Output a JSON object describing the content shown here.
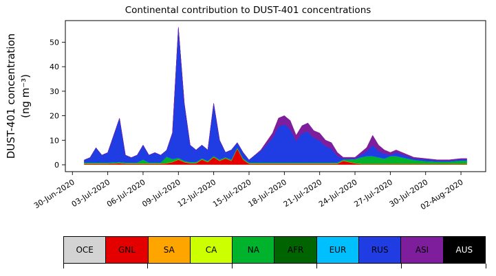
{
  "title": "Continental contribution to DUST-401 concentrations",
  "y_axis": {
    "label_line1": "DUST-401 concentration",
    "label_line2": "(ng m⁻³)"
  },
  "chart_data": {
    "type": "area",
    "stacked": true,
    "title": "Continental contribution to DUST-401 concentrations",
    "ylabel": "DUST-401 concentration (ng m⁻³)",
    "xlabel": "",
    "grid": false,
    "legend_position": "bottom",
    "x_unit": "days since 30-Jun-2020",
    "xlim": [
      -0.6,
      35.1
    ],
    "ylim": [
      -2.8,
      58.8
    ],
    "yticks": [
      0,
      10,
      20,
      30,
      40,
      50
    ],
    "xticks": {
      "positions": [
        0,
        3,
        6,
        9,
        12,
        15,
        18,
        21,
        24,
        27,
        30,
        33
      ],
      "labels": [
        "30-Jun-2020",
        "03-Jul-2020",
        "06-Jul-2020",
        "09-Jul-2020",
        "12-Jul-2020",
        "15-Jul-2020",
        "18-Jul-2020",
        "21-Jul-2020",
        "24-Jul-2020",
        "27-Jul-2020",
        "30-Jul-2020",
        "02-Aug-2020"
      ]
    },
    "x": [
      1,
      1.5,
      2,
      2.5,
      3,
      4,
      4.5,
      5,
      5.5,
      6,
      6.5,
      7,
      7.5,
      8,
      8.5,
      9,
      9.5,
      10,
      10.5,
      11,
      11.5,
      12,
      12.5,
      13,
      13.5,
      14,
      14.5,
      15,
      15.5,
      16,
      17,
      17.5,
      18,
      18.5,
      19,
      19.5,
      20,
      20.5,
      21,
      21.5,
      22,
      22.5,
      23,
      24,
      24.5,
      25,
      25.5,
      26,
      26.5,
      27,
      27.5,
      28,
      29,
      30,
      31,
      32,
      33,
      33.5
    ],
    "series": [
      {
        "name": "OCE",
        "color": "#d3d3d3",
        "constant": 0.1
      },
      {
        "name": "GNL",
        "color": "#e50000",
        "values": [
          0.3,
          0.3,
          0.3,
          0.3,
          0.3,
          0.5,
          0.3,
          0.3,
          0.3,
          0.3,
          0.3,
          0.3,
          0.3,
          0.5,
          1,
          2,
          1,
          0.5,
          0.5,
          2,
          1,
          3,
          1.5,
          2.5,
          1.5,
          6.5,
          2,
          0.3,
          0.3,
          0.3,
          0.3,
          0.3,
          0.3,
          0.3,
          0.3,
          0.3,
          0.3,
          0.3,
          0.3,
          0.3,
          0.3,
          0.3,
          1.5,
          0.5,
          0.2,
          0.2,
          0.2,
          0.2,
          0.2,
          0.2,
          0.2,
          0.2,
          0.2,
          0.2,
          0.2,
          0.2,
          0.2,
          0.2
        ]
      },
      {
        "name": "SA",
        "color": "#ffa500",
        "constant": 0.05
      },
      {
        "name": "CA",
        "color": "#ccff00",
        "constant": 0.05
      },
      {
        "name": "NA",
        "color": "#00b22c",
        "values": [
          0.3,
          0.3,
          0.3,
          0.3,
          0.3,
          0.3,
          0.3,
          0.3,
          0.3,
          1.5,
          0.3,
          0.3,
          0.3,
          2.5,
          1,
          0.5,
          0.3,
          0.3,
          0.3,
          0.3,
          0.3,
          0.3,
          0.3,
          0.3,
          0.3,
          0.3,
          0.3,
          0.3,
          0.3,
          0.3,
          0.3,
          0.3,
          0.3,
          0.3,
          0.3,
          0.3,
          0.3,
          0.3,
          0.3,
          0.3,
          0.3,
          0.3,
          0.3,
          1.5,
          2.5,
          3,
          3,
          2.5,
          2,
          3,
          3,
          2.5,
          1.5,
          1,
          0.8,
          0.8,
          1.2,
          1.2
        ]
      },
      {
        "name": "AFR",
        "color": "#006400",
        "constant": 0.05
      },
      {
        "name": "EUR",
        "color": "#00bfff",
        "constant": 0.1
      },
      {
        "name": "RUS",
        "color": "#1f3de3",
        "values": [
          1,
          2,
          6,
          3,
          4,
          17.8,
          3,
          2,
          3,
          5.9,
          3,
          4,
          3,
          2.6,
          10.7,
          53.2,
          23.4,
          6.9,
          4.9,
          5.4,
          4.4,
          21.4,
          7.9,
          1.9,
          3.9,
          1.9,
          2.4,
          1,
          3,
          4.6,
          10,
          14.6,
          15.6,
          13.6,
          8.6,
          12,
          12.6,
          10,
          9,
          6.6,
          5.6,
          2.6,
          0.4,
          0.2,
          1,
          2,
          4.5,
          2.5,
          2,
          0.5,
          1.5,
          1.2,
          0.5,
          0.7,
          0.4,
          0.4,
          0.5,
          0.5
        ]
      },
      {
        "name": "ASI",
        "color": "#7e1e9c",
        "values": [
          0,
          0,
          0,
          0,
          0,
          0,
          0,
          0,
          0,
          0,
          0,
          0,
          0,
          0,
          0,
          0,
          0,
          0,
          0,
          0,
          0,
          0,
          0,
          0,
          0,
          0,
          0,
          0,
          0,
          0.5,
          2,
          3.5,
          3.5,
          3.5,
          2.5,
          3,
          3.5,
          3,
          3,
          2.5,
          2.5,
          1.5,
          0.5,
          0.5,
          1,
          1.5,
          4,
          2.5,
          1.5,
          1,
          1,
          0.8,
          0.5,
          0.3,
          0.3,
          0.3,
          0.3,
          0.3
        ]
      },
      {
        "name": "AUS",
        "color": "#000000",
        "constant": 0
      }
    ]
  },
  "legend": {
    "tick_positions_percent": [
      0,
      20,
      40,
      60,
      80,
      100
    ],
    "entries": [
      {
        "label": "OCE",
        "color": "#d3d3d3",
        "text_color": "#000000"
      },
      {
        "label": "GNL",
        "color": "#e50000",
        "text_color": "#000000"
      },
      {
        "label": "SA",
        "color": "#ffa500",
        "text_color": "#000000"
      },
      {
        "label": "CA",
        "color": "#ccff00",
        "text_color": "#000000"
      },
      {
        "label": "NA",
        "color": "#00b22c",
        "text_color": "#000000"
      },
      {
        "label": "AFR",
        "color": "#006400",
        "text_color": "#000000"
      },
      {
        "label": "EUR",
        "color": "#00bfff",
        "text_color": "#000000"
      },
      {
        "label": "RUS",
        "color": "#1f3de3",
        "text_color": "#000000"
      },
      {
        "label": "ASI",
        "color": "#7e1e9c",
        "text_color": "#000000"
      },
      {
        "label": "AUS",
        "color": "#000000",
        "text_color": "#ffffff"
      }
    ]
  }
}
